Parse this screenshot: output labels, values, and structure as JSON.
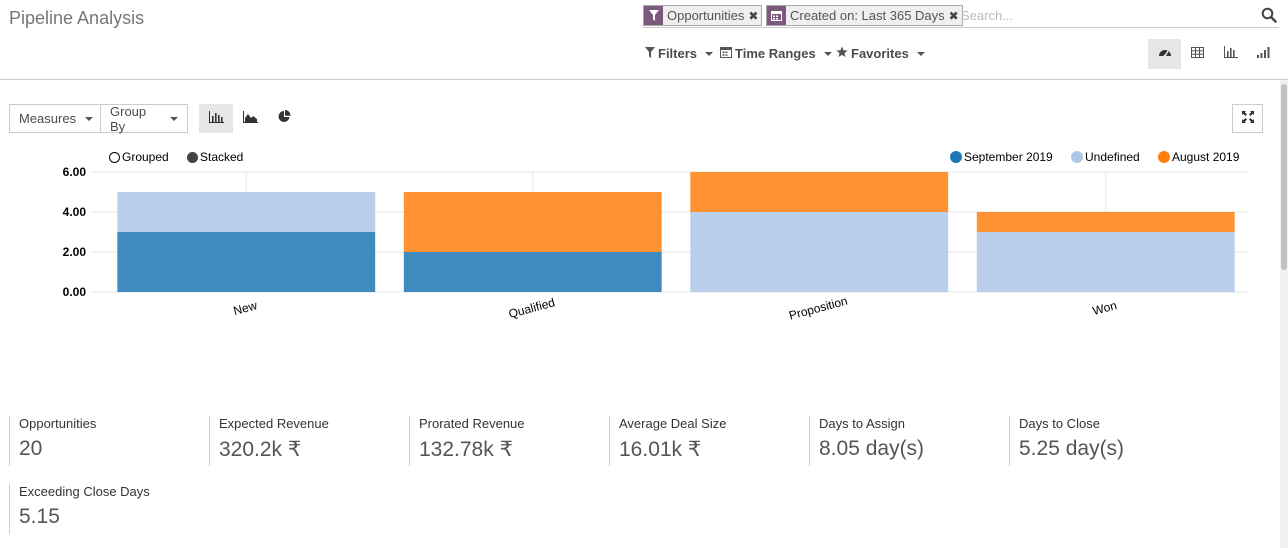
{
  "page": {
    "title": "Pipeline Analysis"
  },
  "search": {
    "facets": [
      {
        "label": "Opportunities",
        "icon": "filter-icon"
      },
      {
        "label": "Created on: Last 365 Days",
        "icon": "calendar-icon"
      }
    ],
    "placeholder": "Search..."
  },
  "toolbar": {
    "filters": "Filters",
    "time_ranges": "Time Ranges",
    "favorites": "Favorites"
  },
  "graph_controls": {
    "measures": "Measures",
    "group_by": "Group By"
  },
  "chart_options": {
    "grouped": "Grouped",
    "stacked": "Stacked",
    "selected": "stacked"
  },
  "colors": {
    "sept": "#1f77b4",
    "undefined": "#aec7e8",
    "aug": "#ff7f0e",
    "facet_icon_bg": "#7c5a7e"
  },
  "chart_data": {
    "type": "bar",
    "stacked": true,
    "categories": [
      "New",
      "Qualified",
      "Proposition",
      "Won"
    ],
    "series": [
      {
        "name": "September 2019",
        "color": "#1f77b4",
        "values": [
          3,
          2,
          0,
          0
        ]
      },
      {
        "name": "Undefined",
        "color": "#aec7e8",
        "values": [
          2,
          0,
          4,
          3
        ]
      },
      {
        "name": "August 2019",
        "color": "#ff7f0e",
        "values": [
          0,
          3,
          2,
          1
        ]
      }
    ],
    "yticks": [
      "0.00",
      "2.00",
      "4.00",
      "6.00"
    ],
    "ylim": [
      0,
      6
    ],
    "title": "",
    "xlabel": "",
    "ylabel": ""
  },
  "kpis": [
    {
      "label": "Opportunities",
      "value": "20"
    },
    {
      "label": "Expected Revenue",
      "value": "320.2k ₹"
    },
    {
      "label": "Prorated Revenue",
      "value": "132.78k ₹"
    },
    {
      "label": "Average Deal Size",
      "value": "16.01k ₹"
    },
    {
      "label": "Days to Assign",
      "value": "8.05 day(s)"
    },
    {
      "label": "Days to Close",
      "value": "5.25 day(s)"
    },
    {
      "label": "Exceeding Close Days",
      "value": "5.15"
    }
  ]
}
